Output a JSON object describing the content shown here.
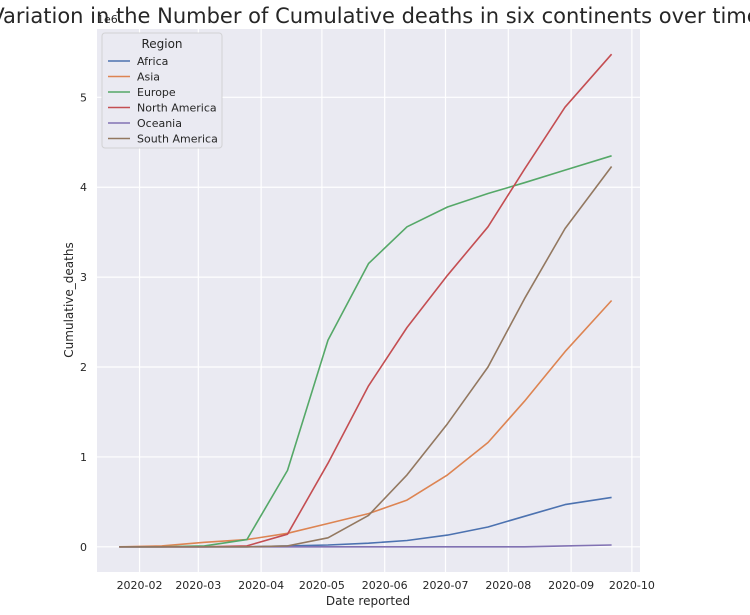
{
  "chart_data": {
    "type": "line",
    "title": "Variation in the Number of Cumulative deaths in six continents over time",
    "xlabel": "Date reported",
    "ylabel": "Cumulative_deaths",
    "y_multiplier_label": "1e6",
    "legend_title": "Region",
    "legend_position": "top-left",
    "grid": true,
    "background": "#eaeaf2",
    "xlim": [
      "2020-01-11",
      "2020-10-05"
    ],
    "ylim": [
      -0.28,
      5.76
    ],
    "x_tick_labels": [
      "2020-02",
      "2020-03",
      "2020-04",
      "2020-05",
      "2020-06",
      "2020-07",
      "2020-08",
      "2020-09",
      "2020-10"
    ],
    "y_tick_labels": [
      "0",
      "1",
      "2",
      "3",
      "4",
      "5"
    ],
    "x": [
      "2020-01-22",
      "2020-02-12",
      "2020-03-04",
      "2020-03-25",
      "2020-04-14",
      "2020-05-04",
      "2020-05-24",
      "2020-06-12",
      "2020-07-02",
      "2020-07-22",
      "2020-08-09",
      "2020-08-29",
      "2020-09-21"
    ],
    "series": [
      {
        "name": "Africa",
        "color": "#4c72b0",
        "values": [
          0.0,
          0.0,
          0.0,
          0.0,
          0.01,
          0.02,
          0.04,
          0.07,
          0.13,
          0.22,
          0.34,
          0.47,
          0.55
        ]
      },
      {
        "name": "Asia",
        "color": "#dd8452",
        "values": [
          0.0,
          0.01,
          0.05,
          0.08,
          0.15,
          0.26,
          0.37,
          0.52,
          0.8,
          1.16,
          1.62,
          2.17,
          2.74
        ]
      },
      {
        "name": "Europe",
        "color": "#55a868",
        "values": [
          0.0,
          0.0,
          0.01,
          0.08,
          0.85,
          2.3,
          3.15,
          3.56,
          3.78,
          3.93,
          4.05,
          4.19,
          4.35
        ]
      },
      {
        "name": "North America",
        "color": "#c44e52",
        "values": [
          0.0,
          0.0,
          0.0,
          0.01,
          0.14,
          0.93,
          1.79,
          2.44,
          3.02,
          3.56,
          4.2,
          4.89,
          5.48
        ]
      },
      {
        "name": "Oceania",
        "color": "#8172b3",
        "values": [
          0.0,
          0.0,
          0.0,
          0.0,
          0.0,
          0.0,
          0.0,
          0.0,
          0.0,
          0.0,
          0.0,
          0.01,
          0.02
        ]
      },
      {
        "name": "South America",
        "color": "#937860",
        "values": [
          0.0,
          0.0,
          0.0,
          0.0,
          0.01,
          0.1,
          0.35,
          0.8,
          1.37,
          2.0,
          2.76,
          3.54,
          4.23
        ]
      }
    ]
  }
}
